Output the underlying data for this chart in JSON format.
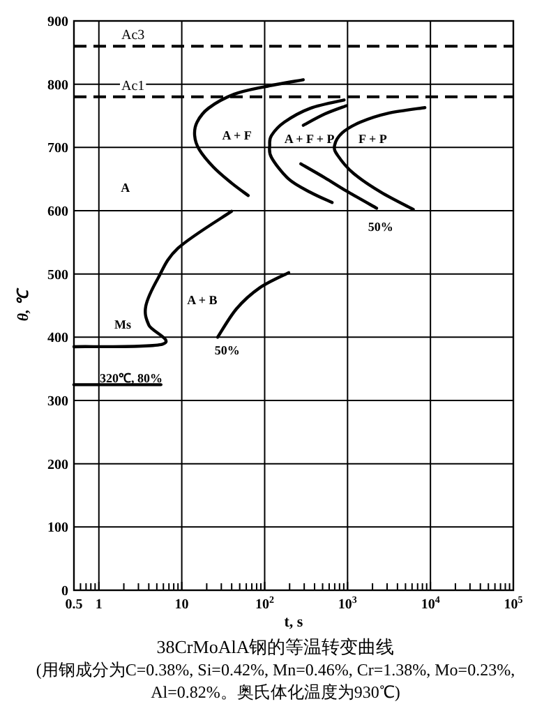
{
  "chart_data": {
    "type": "line",
    "title": "38CrMoAlA钢的等温转变曲线",
    "subtitle": "(用钢成分为C=0.38%, Si=0.42%, Mn=0.46%, Cr=1.38%, Mo=0.23%, Al=0.82%。奥氏体化温度为930℃)",
    "xlabel": "t, s",
    "ylabel": "θ, ℃",
    "log": "x",
    "grid": true,
    "line_style": "solid",
    "xlim": [
      0.5,
      100000
    ],
    "xticks": [
      0.5,
      1,
      10,
      {
        "value": 100,
        "label": "10$^{2}$"
      },
      {
        "value": 1000,
        "label": "10$^{3}$"
      },
      {
        "value": 10000,
        "label": "10$^{4}$"
      },
      {
        "value": 100000,
        "label": "10$^{5}$"
      }
    ],
    "ylim": [
      0,
      900
    ],
    "yticks": [
      0,
      100,
      200,
      300,
      400,
      500,
      600,
      700,
      800,
      900
    ],
    "series": [
      {
        "color": "#000000",
        "x": [
          63.3,
          39.6,
          24.1,
          16.2,
          14.3,
          15.3,
          21,
          42.6,
          100,
          292
        ],
        "values": [
          624,
          644,
          669,
          697,
          719,
          740,
          762,
          784,
          796,
          807
        ]
      },
      {
        "color": "#000000",
        "x": [
          651,
          357,
          195,
          121,
          115,
          121,
          173,
          357,
          908
        ],
        "values": [
          613,
          629,
          650,
          684,
          704,
          719,
          740,
          762,
          775
        ]
      },
      {
        "color": "#000000",
        "x": [
          292,
          533,
          972
        ],
        "values": [
          735,
          753,
          766
        ]
      },
      {
        "color": "#000000",
        "x": [
          273,
          533,
          972,
          2240
        ],
        "values": [
          674,
          652,
          631,
          604
        ]
      },
      {
        "color": "#000000",
        "x": [
          6210,
          2540,
          1180,
          764,
          697,
          862,
          1430,
          3080,
          8570
        ],
        "values": [
          602,
          629,
          659,
          687,
          703,
          723,
          740,
          754,
          763
        ]
      },
      {
        "color": "#000000",
        "x": [
          0.5,
          5.85,
          4.01,
          3.68,
          5.16,
          9.07,
          39.8
        ],
        "values": [
          385,
          389,
          419,
          449,
          493,
          541,
          599
        ]
      },
      {
        "color": "#000000",
        "x": [
          27.1,
          45.8,
          86.9,
          195
        ],
        "values": [
          400,
          445,
          478,
          502
        ]
      },
      {
        "color": "#000000",
        "x": [
          0.5,
          5.6
        ],
        "values": [
          325,
          325
        ]
      }
    ],
    "ref_lines": [
      {
        "axis": "y",
        "value": 860,
        "label": "Ac3",
        "color": "#000000",
        "line_style": "dashed"
      },
      {
        "axis": "y",
        "value": 780,
        "label": "Ac1",
        "color": "#000000",
        "line_style": "dashed"
      }
    ],
    "annotations": [
      "A",
      "A + F",
      "A + F + P",
      "F + P",
      "50%",
      "A + B",
      "50%",
      "Ms",
      "320℃, 80%"
    ]
  }
}
